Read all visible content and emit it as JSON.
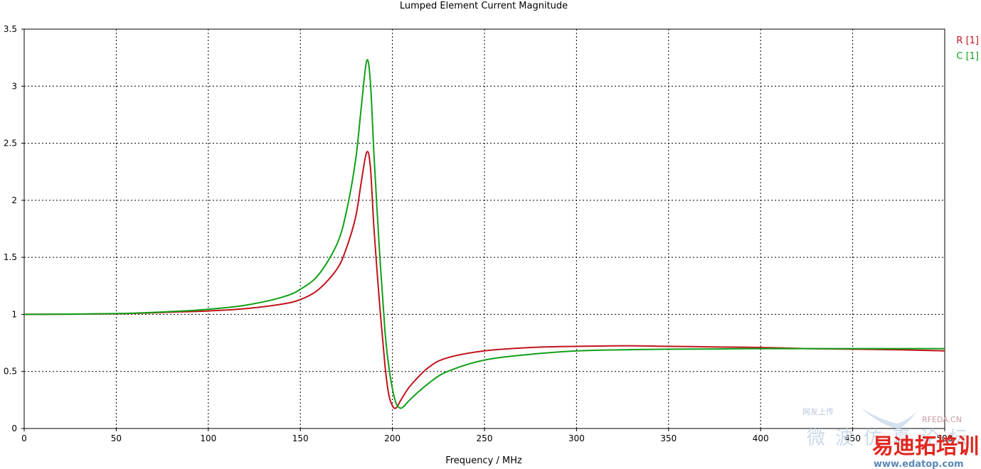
{
  "chart_data": {
    "type": "line",
    "title": "Lumped Element Current Magnitude",
    "xlabel": "Frequency / MHz",
    "ylabel": "",
    "xlim": [
      0,
      500
    ],
    "ylim": [
      0,
      3.5
    ],
    "x_ticks": [
      "0",
      "50",
      "100",
      "150",
      "200",
      "250",
      "300",
      "350",
      "400",
      "450",
      "500"
    ],
    "y_ticks": [
      "0",
      "0.5",
      "1",
      "1.5",
      "2",
      "2.5",
      "3",
      "3.5"
    ],
    "grid": true,
    "legend_placement": "top-right",
    "series": [
      {
        "name": "R [1]",
        "color": "#c0141c",
        "points": [
          [
            0,
            1.0
          ],
          [
            50,
            1.005
          ],
          [
            80,
            1.02
          ],
          [
            100,
            1.03
          ],
          [
            120,
            1.05
          ],
          [
            140,
            1.09
          ],
          [
            150,
            1.13
          ],
          [
            160,
            1.22
          ],
          [
            170,
            1.4
          ],
          [
            175,
            1.58
          ],
          [
            180,
            1.85
          ],
          [
            183,
            2.15
          ],
          [
            186,
            2.42
          ],
          [
            188,
            2.3
          ],
          [
            190,
            1.75
          ],
          [
            193,
            1.1
          ],
          [
            196,
            0.55
          ],
          [
            198,
            0.3
          ],
          [
            200,
            0.2
          ],
          [
            202,
            0.18
          ],
          [
            205,
            0.26
          ],
          [
            210,
            0.38
          ],
          [
            220,
            0.54
          ],
          [
            230,
            0.62
          ],
          [
            250,
            0.68
          ],
          [
            275,
            0.71
          ],
          [
            300,
            0.72
          ],
          [
            325,
            0.725
          ],
          [
            350,
            0.72
          ],
          [
            375,
            0.715
          ],
          [
            400,
            0.71
          ],
          [
            425,
            0.7
          ],
          [
            450,
            0.695
          ],
          [
            475,
            0.69
          ],
          [
            500,
            0.68
          ]
        ]
      },
      {
        "name": "C [1]",
        "color": "#10a018",
        "points": [
          [
            0,
            1.0
          ],
          [
            50,
            1.007
          ],
          [
            80,
            1.025
          ],
          [
            100,
            1.045
          ],
          [
            120,
            1.08
          ],
          [
            140,
            1.15
          ],
          [
            150,
            1.22
          ],
          [
            160,
            1.35
          ],
          [
            170,
            1.62
          ],
          [
            175,
            1.9
          ],
          [
            180,
            2.35
          ],
          [
            183,
            2.8
          ],
          [
            186,
            3.22
          ],
          [
            188,
            3.05
          ],
          [
            190,
            2.4
          ],
          [
            193,
            1.55
          ],
          [
            196,
            0.85
          ],
          [
            198,
            0.55
          ],
          [
            200,
            0.35
          ],
          [
            202,
            0.22
          ],
          [
            204,
            0.18
          ],
          [
            206,
            0.19
          ],
          [
            210,
            0.26
          ],
          [
            220,
            0.4
          ],
          [
            230,
            0.5
          ],
          [
            250,
            0.6
          ],
          [
            275,
            0.65
          ],
          [
            300,
            0.68
          ],
          [
            325,
            0.69
          ],
          [
            350,
            0.695
          ],
          [
            375,
            0.697
          ],
          [
            400,
            0.7
          ],
          [
            425,
            0.7
          ],
          [
            450,
            0.7
          ],
          [
            475,
            0.7
          ],
          [
            500,
            0.7
          ]
        ]
      }
    ]
  },
  "watermark": {
    "site_small": "RFEDA.CN",
    "site_url": "www.edatop.com",
    "brand_cn": "易迪拓培训",
    "faint_cn": "微波仿真论坛",
    "faint_top": "网友上传"
  }
}
